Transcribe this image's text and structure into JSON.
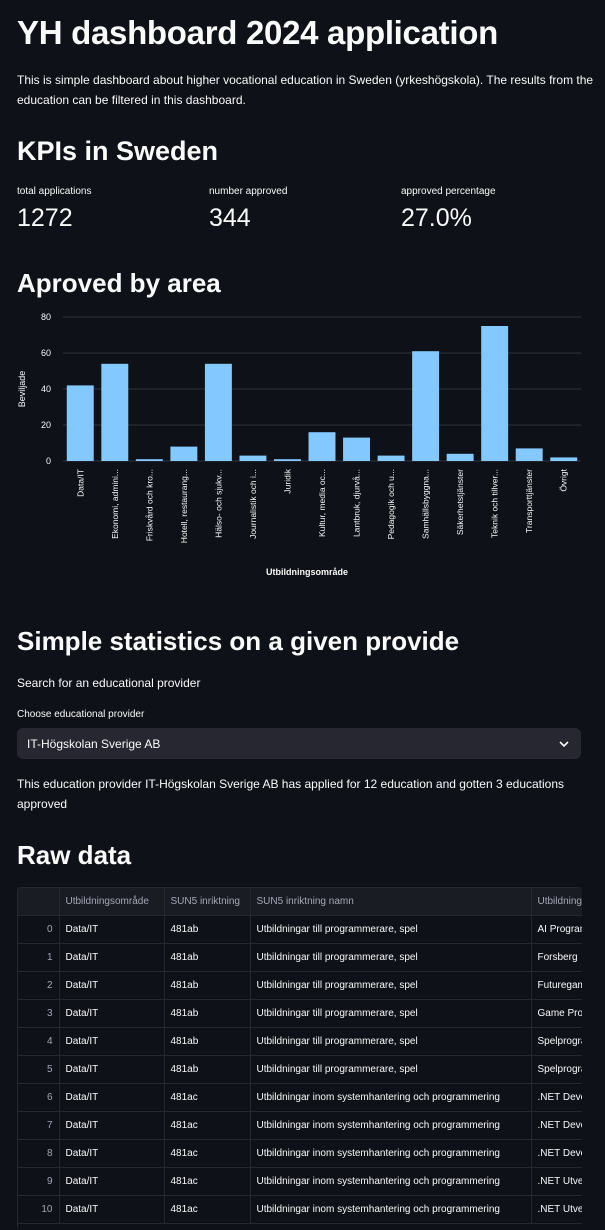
{
  "header": {
    "title": "YH dashboard 2024 application",
    "intro": "This is simple dashboard about higher vocational education in Sweden (yrkeshögskola). The results from the education can be filtered in this dashboard."
  },
  "kpis": {
    "heading": "KPIs in Sweden",
    "items": [
      {
        "label": "total applications",
        "value": "1272"
      },
      {
        "label": "number approved",
        "value": "344"
      },
      {
        "label": "approved percentage",
        "value": "27.0%"
      }
    ]
  },
  "area": {
    "heading": "Aproved by area"
  },
  "chart_data": {
    "type": "bar",
    "xlabel": "Utbildningsområde",
    "ylabel": "Beviljade",
    "ylim": [
      0,
      80
    ],
    "yticks": [
      0,
      20,
      40,
      60,
      80
    ],
    "grid": true,
    "color": "#83c9ff",
    "categories": [
      "Data/IT",
      "Ekonomi, admini...",
      "Friskvård och kro...",
      "Hotell, restaurang...",
      "Hälso- och sjukv...",
      "Journalistik och i...",
      "Juridik",
      "Kultur, media oc...",
      "Lantbruk, djurvå...",
      "Pedagogik och u...",
      "Samhällsbyggna...",
      "Säkerhetstjänster",
      "Teknik och tillver...",
      "Transporttjänster",
      "Övrigt"
    ],
    "values": [
      42,
      54,
      1,
      8,
      54,
      3,
      1,
      16,
      13,
      3,
      61,
      4,
      75,
      7,
      2
    ]
  },
  "stats": {
    "heading": "Simple statistics on a given provide",
    "search_text": "Search for an educational provider",
    "choose_label": "Choose educational provider",
    "selected": "IT-Högskolan Sverige AB",
    "summary": "This education provider IT-Högskolan Sverige AB has applied for 12 education and gotten 3 educations approved"
  },
  "raw": {
    "heading": "Raw data",
    "columns": [
      "",
      "Utbildningsområde",
      "SUN5 inriktning",
      "SUN5 inriktning namn",
      "Utbildningsnamn"
    ],
    "rows": [
      [
        "0",
        "Data/IT",
        "481ab",
        "Utbildningar till programmerare, spel",
        "AI Programmer"
      ],
      [
        "1",
        "Data/IT",
        "481ab",
        "Utbildningar till programmerare, spel",
        "Forsberg"
      ],
      [
        "2",
        "Data/IT",
        "481ab",
        "Utbildningar till programmerare, spel",
        "Futuregames"
      ],
      [
        "3",
        "Data/IT",
        "481ab",
        "Utbildningar till programmerare, spel",
        "Game Programmer"
      ],
      [
        "4",
        "Data/IT",
        "481ab",
        "Utbildningar till programmerare, spel",
        "Spelprogrammerare"
      ],
      [
        "5",
        "Data/IT",
        "481ab",
        "Utbildningar till programmerare, spel",
        "Spelprogrammerare"
      ],
      [
        "6",
        "Data/IT",
        "481ac",
        "Utbildningar inom systemhantering och programmering",
        ".NET Developer"
      ],
      [
        "7",
        "Data/IT",
        "481ac",
        "Utbildningar inom systemhantering och programmering",
        ".NET Developer"
      ],
      [
        "8",
        "Data/IT",
        "481ac",
        "Utbildningar inom systemhantering och programmering",
        ".NET Developer"
      ],
      [
        "9",
        "Data/IT",
        "481ac",
        "Utbildningar inom systemhantering och programmering",
        ".NET Utvecklare"
      ],
      [
        "10",
        "Data/IT",
        "481ac",
        "Utbildningar inom systemhantering och programmering",
        ".NET Utvecklare"
      ]
    ]
  }
}
